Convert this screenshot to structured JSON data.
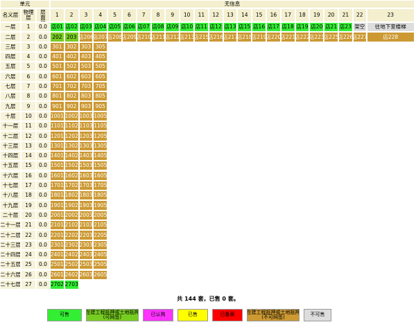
{
  "table": {
    "header": {
      "unit": "单元",
      "info": "无信息",
      "columns": [
        "名义层",
        "物理层",
        "楼层面积"
      ],
      "numbers": [
        1,
        2,
        3,
        4,
        5,
        6,
        7,
        8,
        9,
        10,
        11,
        12,
        13,
        14,
        15,
        16,
        17,
        18,
        19,
        20,
        21,
        22,
        23
      ]
    },
    "rows": [
      {
        "name": "一层",
        "floor": 1,
        "area": "0.0",
        "cells": [
          {
            "t": "店01",
            "s": 0
          },
          {
            "t": "店02",
            "s": 0
          },
          {
            "t": "店03",
            "s": 0
          },
          {
            "t": "店04",
            "s": 0
          },
          {
            "t": "店05",
            "s": 0
          },
          {
            "t": "店06",
            "s": 0
          },
          {
            "t": "店07",
            "s": 0
          },
          {
            "t": "店08",
            "s": 0
          },
          {
            "t": "店09",
            "s": 0
          },
          {
            "t": "店10",
            "s": 0
          },
          {
            "t": "店11",
            "s": 0
          },
          {
            "t": "店12",
            "s": 0
          },
          {
            "t": "店13",
            "s": 0
          },
          {
            "t": "店15",
            "s": 0
          },
          {
            "t": "店16",
            "s": 0
          },
          {
            "t": "店17",
            "s": 0
          },
          {
            "t": "店18",
            "s": 0
          },
          {
            "t": "店19",
            "s": 0
          },
          {
            "t": "店20",
            "s": 0
          },
          {
            "t": "店21",
            "s": 0
          },
          {
            "t": "店23",
            "s": 0
          },
          {
            "t": "架空",
            "s": 6
          },
          {
            "t": "往地下室楼梯",
            "s": 6
          }
        ]
      },
      {
        "name": "二层",
        "floor": 2,
        "area": "0.0",
        "cells": [
          {
            "t": "202",
            "s": 1
          },
          {
            "t": "203",
            "s": 1
          },
          {
            "t": "店206",
            "s": 5
          },
          {
            "t": "店207",
            "s": 5
          },
          {
            "t": "店208",
            "s": 5
          },
          {
            "t": "店209",
            "s": 5
          },
          {
            "t": "店210",
            "s": 5
          },
          {
            "t": "店211",
            "s": 5
          },
          {
            "t": "店212",
            "s": 5
          },
          {
            "t": "店213",
            "s": 5
          },
          {
            "t": "店215",
            "s": 5
          },
          {
            "t": "店216",
            "s": 5
          },
          {
            "t": "店217",
            "s": 5
          },
          {
            "t": "店218",
            "s": 5
          },
          {
            "t": "店219",
            "s": 5
          },
          {
            "t": "店220",
            "s": 5
          },
          {
            "t": "店221",
            "s": 5
          },
          {
            "t": "店222",
            "s": 5
          },
          {
            "t": "店223",
            "s": 5
          },
          {
            "t": "店225",
            "s": 5
          },
          {
            "t": "店226",
            "s": 5
          },
          {
            "t": "店227",
            "s": 5
          },
          {
            "t": "店228",
            "s": 5
          }
        ]
      },
      {
        "name": "三层",
        "floor": 3,
        "area": "0.0",
        "cells": [
          {
            "t": "301",
            "s": 5
          },
          {
            "t": "302",
            "s": 5
          },
          {
            "t": "303",
            "s": 5
          },
          {
            "t": "305",
            "s": 5
          }
        ]
      },
      {
        "name": "四层",
        "floor": 4,
        "area": "0.0",
        "cells": [
          {
            "t": "401",
            "s": 5
          },
          {
            "t": "402",
            "s": 5
          },
          {
            "t": "403",
            "s": 5
          },
          {
            "t": "405",
            "s": 5
          }
        ]
      },
      {
        "name": "五层",
        "floor": 5,
        "area": "0.0",
        "cells": [
          {
            "t": "501",
            "s": 5
          },
          {
            "t": "502",
            "s": 5
          },
          {
            "t": "503",
            "s": 5
          },
          {
            "t": "505",
            "s": 5
          }
        ]
      },
      {
        "name": "六层",
        "floor": 6,
        "area": "0.0",
        "cells": [
          {
            "t": "601",
            "s": 5
          },
          {
            "t": "602",
            "s": 5
          },
          {
            "t": "603",
            "s": 5
          },
          {
            "t": "605",
            "s": 5
          }
        ]
      },
      {
        "name": "七层",
        "floor": 7,
        "area": "0.0",
        "cells": [
          {
            "t": "701",
            "s": 5
          },
          {
            "t": "702",
            "s": 5
          },
          {
            "t": "703",
            "s": 5
          },
          {
            "t": "705",
            "s": 5
          }
        ]
      },
      {
        "name": "八层",
        "floor": 8,
        "area": "0.0",
        "cells": [
          {
            "t": "801",
            "s": 5
          },
          {
            "t": "802",
            "s": 5
          },
          {
            "t": "803",
            "s": 5
          },
          {
            "t": "805",
            "s": 5
          }
        ]
      },
      {
        "name": "九层",
        "floor": 9,
        "area": "0.0",
        "cells": [
          {
            "t": "901",
            "s": 5
          },
          {
            "t": "902",
            "s": 5
          },
          {
            "t": "903",
            "s": 5
          },
          {
            "t": "905",
            "s": 5
          }
        ]
      },
      {
        "name": "十层",
        "floor": 10,
        "area": "0.0",
        "cells": [
          {
            "t": "1001",
            "s": 5
          },
          {
            "t": "1002",
            "s": 5
          },
          {
            "t": "1003",
            "s": 5
          },
          {
            "t": "1005",
            "s": 5
          }
        ]
      },
      {
        "name": "十一层",
        "floor": 11,
        "area": "0.0",
        "cells": [
          {
            "t": "1101",
            "s": 5
          },
          {
            "t": "1102",
            "s": 5
          },
          {
            "t": "1103",
            "s": 5
          },
          {
            "t": "1105",
            "s": 5
          }
        ]
      },
      {
        "name": "十二层",
        "floor": 12,
        "area": "0.0",
        "cells": [
          {
            "t": "1201",
            "s": 5
          },
          {
            "t": "1202",
            "s": 5
          },
          {
            "t": "1203",
            "s": 5
          },
          {
            "t": "1205",
            "s": 5
          }
        ]
      },
      {
        "name": "十三层",
        "floor": 13,
        "area": "0.0",
        "cells": [
          {
            "t": "1301",
            "s": 5
          },
          {
            "t": "1302",
            "s": 5
          },
          {
            "t": "1303",
            "s": 5
          },
          {
            "t": "1305",
            "s": 5
          }
        ]
      },
      {
        "name": "十四层",
        "floor": 14,
        "area": "0.0",
        "cells": [
          {
            "t": "1401",
            "s": 5
          },
          {
            "t": "1402",
            "s": 5
          },
          {
            "t": "1403",
            "s": 5
          },
          {
            "t": "1405",
            "s": 5
          }
        ]
      },
      {
        "name": "十五层",
        "floor": 15,
        "area": "0.0",
        "cells": [
          {
            "t": "1501",
            "s": 5
          },
          {
            "t": "1502",
            "s": 5
          },
          {
            "t": "1503",
            "s": 5
          },
          {
            "t": "1505",
            "s": 5
          }
        ]
      },
      {
        "name": "十六层",
        "floor": 16,
        "area": "0.0",
        "cells": [
          {
            "t": "1601",
            "s": 5
          },
          {
            "t": "1602",
            "s": 5
          },
          {
            "t": "1603",
            "s": 5
          },
          {
            "t": "1605",
            "s": 5
          }
        ]
      },
      {
        "name": "十七层",
        "floor": 17,
        "area": "0.0",
        "cells": [
          {
            "t": "1701",
            "s": 5
          },
          {
            "t": "1702",
            "s": 5
          },
          {
            "t": "1703",
            "s": 5
          },
          {
            "t": "1705",
            "s": 5
          }
        ]
      },
      {
        "name": "十八层",
        "floor": 18,
        "area": "0.0",
        "cells": [
          {
            "t": "1801",
            "s": 5
          },
          {
            "t": "1802",
            "s": 5
          },
          {
            "t": "1803",
            "s": 5
          },
          {
            "t": "1805",
            "s": 5
          }
        ]
      },
      {
        "name": "十九层",
        "floor": 19,
        "area": "0.0",
        "cells": [
          {
            "t": "1901",
            "s": 5
          },
          {
            "t": "1902",
            "s": 5
          },
          {
            "t": "1903",
            "s": 5
          },
          {
            "t": "1905",
            "s": 5
          }
        ]
      },
      {
        "name": "二十层",
        "floor": 20,
        "area": "0.0",
        "cells": [
          {
            "t": "2001",
            "s": 5
          },
          {
            "t": "2002",
            "s": 5
          },
          {
            "t": "2003",
            "s": 5
          },
          {
            "t": "2005",
            "s": 5
          }
        ]
      },
      {
        "name": "二十一层",
        "floor": 21,
        "area": "0.0",
        "cells": [
          {
            "t": "2101",
            "s": 5
          },
          {
            "t": "2102",
            "s": 5
          },
          {
            "t": "2103",
            "s": 5
          },
          {
            "t": "2105",
            "s": 5
          }
        ]
      },
      {
        "name": "二十二层",
        "floor": 22,
        "area": "0.0",
        "cells": [
          {
            "t": "2201",
            "s": 5
          },
          {
            "t": "2202",
            "s": 5
          },
          {
            "t": "2203",
            "s": 5
          },
          {
            "t": "2205",
            "s": 5
          }
        ]
      },
      {
        "name": "二十三层",
        "floor": 23,
        "area": "0.0",
        "cells": [
          {
            "t": "2301",
            "s": 5
          },
          {
            "t": "2302",
            "s": 5
          },
          {
            "t": "2303",
            "s": 5
          },
          {
            "t": "2305",
            "s": 5
          }
        ]
      },
      {
        "name": "二十四层",
        "floor": 24,
        "area": "0.0",
        "cells": [
          {
            "t": "2401",
            "s": 5
          },
          {
            "t": "2402",
            "s": 5
          },
          {
            "t": "2403",
            "s": 5
          },
          {
            "t": "2405",
            "s": 5
          }
        ]
      },
      {
        "name": "二十五层",
        "floor": 25,
        "area": "0.0",
        "cells": [
          {
            "t": "2501",
            "s": 5
          },
          {
            "t": "2502",
            "s": 5
          },
          {
            "t": "2503",
            "s": 5
          },
          {
            "t": "2505",
            "s": 5
          }
        ]
      },
      {
        "name": "二十六层",
        "floor": 26,
        "area": "0.0",
        "cells": [
          {
            "t": "2601",
            "s": 5
          },
          {
            "t": "2602",
            "s": 5
          },
          {
            "t": "2603",
            "s": 5
          },
          {
            "t": "2605",
            "s": 5
          }
        ]
      },
      {
        "name": "二十七层",
        "floor": 27,
        "area": "0.0",
        "cells": [
          {
            "t": "2702",
            "s": 0
          },
          {
            "t": "2703",
            "s": 0
          }
        ]
      }
    ]
  },
  "summary": "共 144 套，已售 0 套。",
  "legend": [
    {
      "label": [
        "可售"
      ],
      "color": "#33ee33",
      "text": "#000"
    },
    {
      "label": [
        "在建工程抵押或土地抵押",
        "(可网签)"
      ],
      "color": "#77cc22",
      "text": "#000"
    },
    {
      "label": [
        "已认购"
      ],
      "color": "#ff33ff",
      "text": "#000"
    },
    {
      "label": [
        "已售"
      ],
      "color": "#ffff00",
      "text": "#000"
    },
    {
      "label": [
        "已备案"
      ],
      "color": "#ff0000",
      "text": "#000"
    },
    {
      "label": [
        "在建工程抵押或土地抵押",
        "(不可网签)"
      ],
      "color": "#cc9933",
      "text": "#000"
    },
    {
      "label": [
        "不可售"
      ],
      "color": "#dddddd",
      "text": "#000"
    }
  ]
}
